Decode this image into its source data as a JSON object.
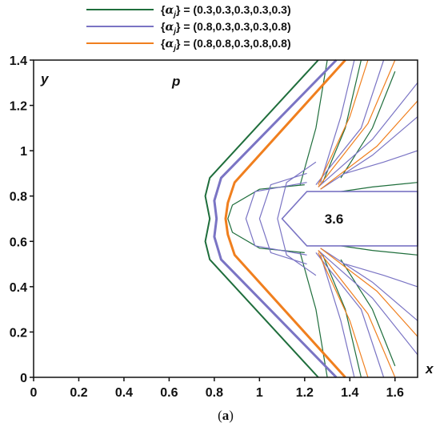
{
  "chart_data": {
    "type": "line",
    "panel_label": "(a)",
    "xlabel": "x",
    "ylabel": "y",
    "field_label": "p",
    "annotation": "3.6",
    "xlim": [
      0,
      1.7
    ],
    "ylim": [
      0,
      1.4
    ],
    "x_ticks": [
      "0",
      "0.2",
      "0.4",
      "0.6",
      "0.8",
      "1",
      "1.2",
      "1.4",
      "1.6"
    ],
    "y_ticks": [
      "0",
      "0.2",
      "0.4",
      "0.6",
      "0.8",
      "1",
      "1.2",
      "1.4"
    ],
    "grid": false,
    "legend_position": "top",
    "legend": [
      {
        "label": "{αj} = (0.3,0.3,0.3,0.3,0.3)",
        "greek": "α",
        "sub": "j",
        "rest": "} = (0.3,0.3,0.3,0.3,0.3)",
        "color": "#1f6e3c"
      },
      {
        "label": "{αj} = (0.8,0.3,0.3,0.3,0.8)",
        "greek": "α",
        "sub": "j",
        "rest": "} = (0.8,0.3,0.3,0.3,0.8)",
        "color": "#7a74c4"
      },
      {
        "label": "{αj} = (0.8,0.8,0.3,0.8,0.8)",
        "greek": "α",
        "sub": "j",
        "rest": "} = (0.8,0.8,0.3,0.8,0.8)",
        "color": "#f07f1e"
      }
    ],
    "series": [
      {
        "name": "{αj} = (0.3,0.3,0.3,0.3,0.3)",
        "color": "#1f6e3c",
        "shock": {
          "x": [
            1.26,
            0.78,
            0.76,
            0.78,
            0.76,
            0.78,
            1.26
          ],
          "y": [
            1.4,
            0.88,
            0.8,
            0.7,
            0.6,
            0.52,
            0.0
          ]
        },
        "contours": [
          {
            "x": [
              1.2,
              1.0,
              0.88,
              0.86,
              0.88,
              1.0,
              1.2
            ],
            "y": [
              0.85,
              0.83,
              0.76,
              0.7,
              0.64,
              0.57,
              0.55
            ]
          },
          {
            "x": [
              1.3,
              1.25,
              1.18
            ],
            "y": [
              1.4,
              1.1,
              0.85
            ]
          },
          {
            "x": [
              1.3,
              1.25,
              1.18
            ],
            "y": [
              0.0,
              0.3,
              0.55
            ]
          },
          {
            "x": [
              1.45,
              1.38,
              1.28
            ],
            "y": [
              1.4,
              1.1,
              0.86
            ]
          },
          {
            "x": [
              1.45,
              1.38,
              1.28
            ],
            "y": [
              0.0,
              0.3,
              0.54
            ]
          },
          {
            "x": [
              1.6,
              1.5,
              1.36
            ],
            "y": [
              1.35,
              1.1,
              0.88
            ]
          },
          {
            "x": [
              1.6,
              1.5,
              1.36
            ],
            "y": [
              0.05,
              0.3,
              0.52
            ]
          },
          {
            "x": [
              1.36,
              1.5,
              1.7
            ],
            "y": [
              0.82,
              0.84,
              0.86
            ]
          },
          {
            "x": [
              1.36,
              1.5,
              1.7
            ],
            "y": [
              0.58,
              0.56,
              0.54
            ]
          }
        ]
      },
      {
        "name": "{αj} = (0.8,0.3,0.3,0.3,0.8)",
        "color": "#7a74c4",
        "shock": {
          "x": [
            1.34,
            0.83,
            0.8,
            0.81,
            0.8,
            0.83,
            1.34
          ],
          "y": [
            1.4,
            0.88,
            0.78,
            0.7,
            0.62,
            0.52,
            0.0
          ]
        },
        "contours": [
          {
            "x": [
              1.21,
              0.98,
              0.94,
              0.98,
              1.21
            ],
            "y": [
              0.86,
              0.82,
              0.7,
              0.58,
              0.54
            ]
          },
          {
            "x": [
              1.21,
              1.05,
              1.0,
              1.05,
              1.21
            ],
            "y": [
              0.9,
              0.85,
              0.7,
              0.55,
              0.5
            ]
          },
          {
            "x": [
              1.25,
              1.12,
              1.08,
              1.12,
              1.25
            ],
            "y": [
              0.95,
              0.86,
              0.7,
              0.54,
              0.45
            ]
          },
          {
            "x": [
              1.55,
              1.45,
              1.25
            ],
            "y": [
              1.4,
              1.1,
              0.85
            ]
          },
          {
            "x": [
              1.55,
              1.45,
              1.25
            ],
            "y": [
              0.0,
              0.3,
              0.55
            ]
          },
          {
            "x": [
              1.7,
              1.5,
              1.26
            ],
            "y": [
              1.3,
              1.05,
              0.84
            ]
          },
          {
            "x": [
              1.7,
              1.5,
              1.26
            ],
            "y": [
              0.1,
              0.35,
              0.56
            ]
          },
          {
            "x": [
              1.7,
              1.5,
              1.27
            ],
            "y": [
              1.15,
              0.98,
              0.83
            ]
          },
          {
            "x": [
              1.7,
              1.5,
              1.27
            ],
            "y": [
              0.25,
              0.42,
              0.57
            ]
          },
          {
            "x": [
              1.42,
              1.36,
              1.27
            ],
            "y": [
              1.4,
              1.15,
              0.86
            ]
          },
          {
            "x": [
              1.42,
              1.36,
              1.27
            ],
            "y": [
              0.0,
              0.25,
              0.54
            ]
          },
          {
            "x": [
              1.7,
              1.55,
              1.38
            ],
            "y": [
              1.0,
              0.95,
              0.9
            ]
          },
          {
            "x": [
              1.7,
              1.55,
              1.38
            ],
            "y": [
              0.4,
              0.45,
              0.5
            ]
          }
        ]
      },
      {
        "name": "{αj} = (0.8,0.8,0.3,0.8,0.8)",
        "color": "#f07f1e",
        "shock": {
          "x": [
            1.38,
            0.89,
            0.86,
            0.85,
            0.86,
            0.89,
            1.38
          ],
          "y": [
            1.4,
            0.86,
            0.77,
            0.7,
            0.63,
            0.54,
            0.0
          ]
        },
        "contours": [
          {
            "x": [
              1.6,
              1.48,
              1.26
            ],
            "y": [
              1.4,
              1.12,
              0.84
            ]
          },
          {
            "x": [
              1.6,
              1.48,
              1.26
            ],
            "y": [
              0.0,
              0.28,
              0.56
            ]
          },
          {
            "x": [
              1.7,
              1.52,
              1.27
            ],
            "y": [
              1.22,
              1.02,
              0.83
            ]
          },
          {
            "x": [
              1.7,
              1.52,
              1.27
            ],
            "y": [
              0.18,
              0.38,
              0.57
            ]
          },
          {
            "x": [
              1.48,
              1.4,
              1.26
            ],
            "y": [
              1.4,
              1.15,
              0.85
            ]
          },
          {
            "x": [
              1.48,
              1.4,
              1.26
            ],
            "y": [
              0.0,
              0.25,
              0.55
            ]
          }
        ]
      }
    ],
    "body": {
      "x": [
        1.7,
        1.21,
        1.1,
        1.21,
        1.7
      ],
      "y": [
        0.82,
        0.82,
        0.7,
        0.58,
        0.58
      ]
    }
  }
}
